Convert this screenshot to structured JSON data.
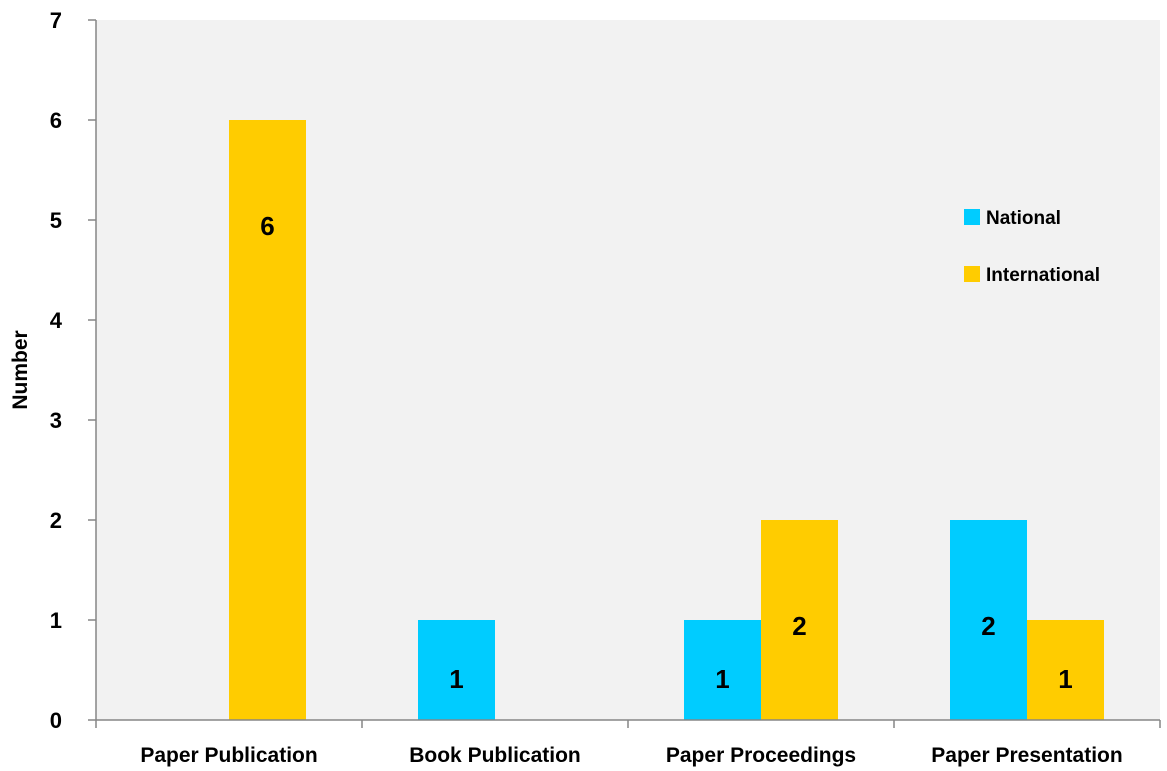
{
  "chart_data": {
    "type": "bar",
    "categories": [
      "Paper Publication",
      "Book Publication",
      "Paper Proceedings",
      "Paper Presentation"
    ],
    "series": [
      {
        "name": "National",
        "color": "#00CCFF",
        "values": [
          0,
          1,
          1,
          2
        ]
      },
      {
        "name": "International",
        "color": "#FFCC00",
        "values": [
          6,
          0,
          2,
          1
        ]
      }
    ],
    "ylabel": "Number",
    "xlabel": "",
    "ylim": [
      0,
      7
    ],
    "yticks": [
      "0",
      "1",
      "2",
      "3",
      "4",
      "5",
      "6",
      "7"
    ],
    "data_labels": [
      [
        null,
        "1",
        "1",
        "2"
      ],
      [
        "6",
        null,
        "2",
        "1"
      ]
    ],
    "legend_position": "right",
    "plot_background": "#F2F2F2",
    "grid": false
  }
}
